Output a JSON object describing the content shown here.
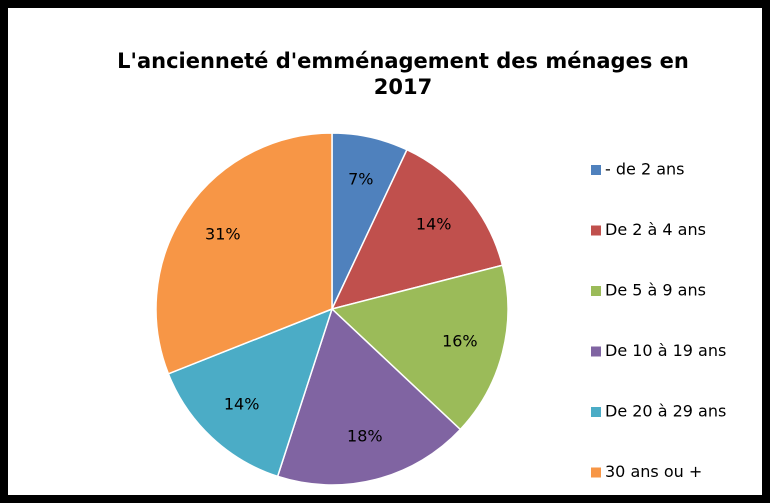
{
  "chart_data": {
    "type": "pie",
    "title": "L'ancienneté d'emménagement des ménages en 2017",
    "categories": [
      "- de 2 ans",
      "De 2 à 4 ans",
      "De 5 à 9 ans",
      "De 10 à 19 ans",
      "De 20 à 29 ans",
      "30 ans ou +"
    ],
    "values": [
      7,
      14,
      16,
      18,
      14,
      31
    ],
    "value_labels": [
      "7%",
      "14%",
      "16%",
      "18%",
      "14%",
      "31%"
    ],
    "colors": [
      "#4f81bd",
      "#c0504d",
      "#9bbb59",
      "#8064a2",
      "#4bacc6",
      "#f79646"
    ],
    "legend": "right"
  }
}
